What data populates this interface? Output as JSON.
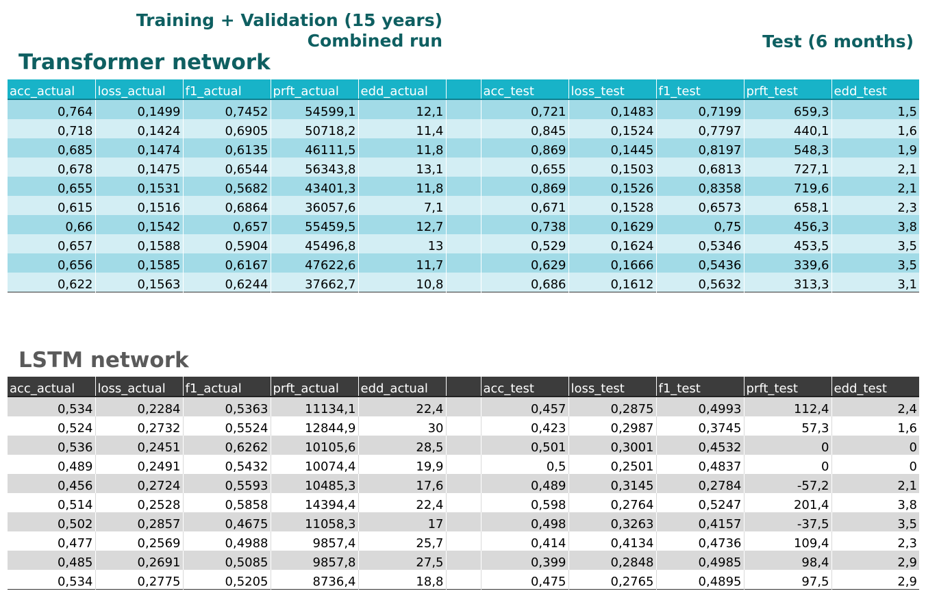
{
  "headers": {
    "training_line1": "Training + Validation (15 years)",
    "training_line2": "Combined run",
    "test": "Test (6 months)"
  },
  "transformer": {
    "title": "Transformer network",
    "columns": [
      "acc_actual",
      "loss_actual",
      "f1_actual",
      "prft_actual",
      "edd_actual",
      "",
      "acc_test",
      "loss_test",
      "f1_test",
      "prft_test",
      "edd_test"
    ],
    "rows": [
      [
        "0,764",
        "0,1499",
        "0,7452",
        "54599,1",
        "12,1",
        "",
        "0,721",
        "0,1483",
        "0,7199",
        "659,3",
        "1,5"
      ],
      [
        "0,718",
        "0,1424",
        "0,6905",
        "50718,2",
        "11,4",
        "",
        "0,845",
        "0,1524",
        "0,7797",
        "440,1",
        "1,6"
      ],
      [
        "0,685",
        "0,1474",
        "0,6135",
        "46111,5",
        "11,8",
        "",
        "0,869",
        "0,1445",
        "0,8197",
        "548,3",
        "1,9"
      ],
      [
        "0,678",
        "0,1475",
        "0,6544",
        "56343,8",
        "13,1",
        "",
        "0,655",
        "0,1503",
        "0,6813",
        "727,1",
        "2,1"
      ],
      [
        "0,655",
        "0,1531",
        "0,5682",
        "43401,3",
        "11,8",
        "",
        "0,869",
        "0,1526",
        "0,8358",
        "719,6",
        "2,1"
      ],
      [
        "0,615",
        "0,1516",
        "0,6864",
        "36057,6",
        "7,1",
        "",
        "0,671",
        "0,1528",
        "0,6573",
        "658,1",
        "2,3"
      ],
      [
        "0,66",
        "0,1542",
        "0,657",
        "55459,5",
        "12,7",
        "",
        "0,738",
        "0,1629",
        "0,75",
        "456,3",
        "3,8"
      ],
      [
        "0,657",
        "0,1588",
        "0,5904",
        "45496,8",
        "13",
        "",
        "0,529",
        "0,1624",
        "0,5346",
        "453,5",
        "3,5"
      ],
      [
        "0,656",
        "0,1585",
        "0,6167",
        "47622,6",
        "11,7",
        "",
        "0,629",
        "0,1666",
        "0,5436",
        "339,6",
        "3,5"
      ],
      [
        "0,622",
        "0,1563",
        "0,6244",
        "37662,7",
        "10,8",
        "",
        "0,686",
        "0,1612",
        "0,5632",
        "313,3",
        "3,1"
      ]
    ]
  },
  "lstm": {
    "title": "LSTM network",
    "columns": [
      "acc_actual",
      "loss_actual",
      "f1_actual",
      "prft_actual",
      "edd_actual",
      "",
      "acc_test",
      "loss_test",
      "f1_test",
      "prft_test",
      "edd_test"
    ],
    "rows": [
      [
        "0,534",
        "0,2284",
        "0,5363",
        "11134,1",
        "22,4",
        "",
        "0,457",
        "0,2875",
        "0,4993",
        "112,4",
        "2,4"
      ],
      [
        "0,524",
        "0,2732",
        "0,5524",
        "12844,9",
        "30",
        "",
        "0,423",
        "0,2987",
        "0,3745",
        "57,3",
        "1,6"
      ],
      [
        "0,536",
        "0,2451",
        "0,6262",
        "10105,6",
        "28,5",
        "",
        "0,501",
        "0,3001",
        "0,4532",
        "0",
        "0"
      ],
      [
        "0,489",
        "0,2491",
        "0,5432",
        "10074,4",
        "19,9",
        "",
        "0,5",
        "0,2501",
        "0,4837",
        "0",
        "0"
      ],
      [
        "0,456",
        "0,2724",
        "0,5593",
        "10485,3",
        "17,6",
        "",
        "0,489",
        "0,3145",
        "0,2784",
        "-57,2",
        "2,1"
      ],
      [
        "0,514",
        "0,2528",
        "0,5858",
        "14394,4",
        "22,4",
        "",
        "0,598",
        "0,2764",
        "0,5247",
        "201,4",
        "3,8"
      ],
      [
        "0,502",
        "0,2857",
        "0,4675",
        "11058,3",
        "17",
        "",
        "0,498",
        "0,3263",
        "0,4157",
        "-37,5",
        "3,5"
      ],
      [
        "0,477",
        "0,2569",
        "0,4988",
        "9857,4",
        "25,7",
        "",
        "0,414",
        "0,4134",
        "0,4736",
        "109,4",
        "2,3"
      ],
      [
        "0,485",
        "0,2691",
        "0,5085",
        "9857,8",
        "27,5",
        "",
        "0,399",
        "0,2848",
        "0,4985",
        "98,4",
        "2,9"
      ],
      [
        "0,534",
        "0,2775",
        "0,5205",
        "8736,4",
        "18,8",
        "",
        "0,475",
        "0,2765",
        "0,4895",
        "97,5",
        "2,9"
      ]
    ]
  }
}
